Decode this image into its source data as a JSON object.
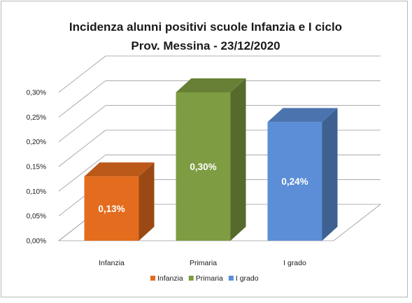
{
  "chart_data": {
    "type": "bar",
    "title": "Incidenza alunni positivi scuole Infanzia e I ciclo",
    "subtitle": "Prov. Messina - 23/12/2020",
    "categories": [
      "Infanzia",
      "Primaria",
      "I grado"
    ],
    "values": [
      0.13,
      0.3,
      0.24
    ],
    "data_labels": [
      "0,13%",
      "0,30%",
      "0,24%"
    ],
    "colors": [
      "#e46c1e",
      "#7e9c42",
      "#5b8ed6"
    ],
    "y_ticks": [
      0,
      0.05,
      0.1,
      0.15,
      0.2,
      0.25,
      0.3
    ],
    "y_tick_labels": [
      "0,00%",
      "0,05%",
      "0,10%",
      "0,15%",
      "0,20%",
      "0,25%",
      "0,30%"
    ],
    "ylim": [
      0,
      0.3
    ],
    "grid": true,
    "three_d": true,
    "legend_position": "bottom",
    "xlabel": "",
    "ylabel": ""
  }
}
